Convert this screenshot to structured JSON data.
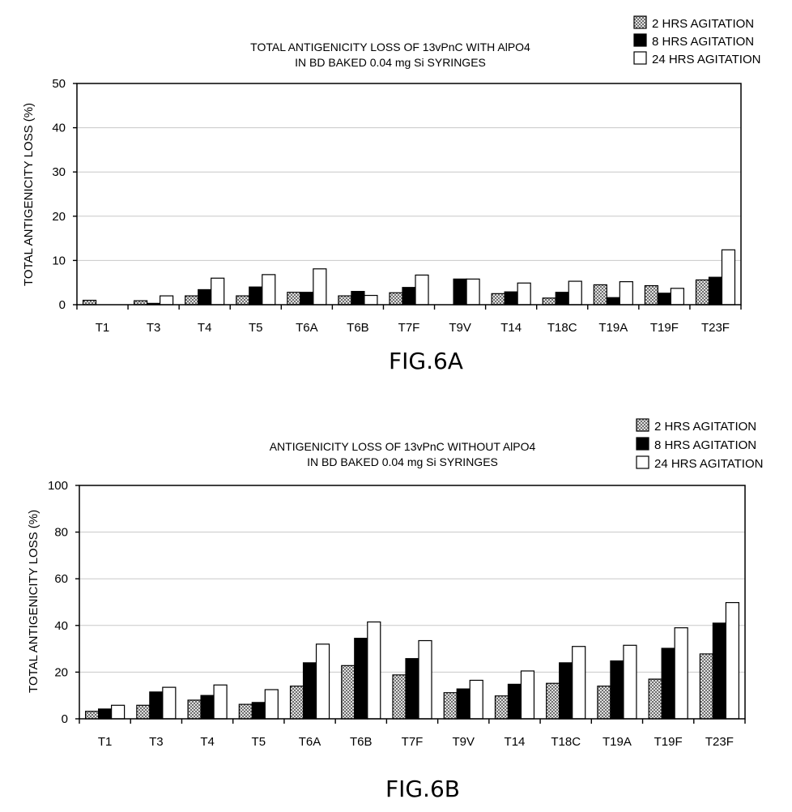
{
  "chart_data": [
    {
      "type": "bar",
      "title": "TOTAL ANTIGENICITY LOSS OF 13vPnC WITH AlPO4",
      "subtitle": "IN BD BAKED 0.04 mg Si SYRINGES",
      "ylabel": "TOTAL ANTIGENICITY LOSS (%)",
      "xlabel": "",
      "ylim": [
        0,
        50
      ],
      "yticks": [
        0,
        10,
        20,
        30,
        40,
        50
      ],
      "grid": true,
      "legend_position": "top-right",
      "figure_label": "FIG.6A",
      "categories": [
        "T1",
        "T3",
        "T4",
        "T5",
        "T6A",
        "T6B",
        "T7F",
        "T9V",
        "T14",
        "T18C",
        "T19A",
        "T19F",
        "T23F"
      ],
      "series": [
        {
          "name": "2 HRS AGITATION",
          "pattern": "crosshatch",
          "values": [
            1.0,
            0.9,
            2.0,
            2.0,
            2.8,
            2.0,
            2.7,
            0,
            2.5,
            1.5,
            4.5,
            4.3,
            5.6
          ]
        },
        {
          "name": "8 HRS AGITATION",
          "pattern": "solid-black",
          "values": [
            0,
            0.3,
            3.4,
            4.0,
            2.8,
            3.0,
            3.9,
            5.8,
            2.9,
            2.8,
            1.6,
            2.6,
            6.2
          ]
        },
        {
          "name": "24 HRS AGITATION",
          "pattern": "white",
          "values": [
            0,
            2.0,
            6.0,
            6.8,
            8.1,
            2.1,
            6.7,
            5.8,
            4.9,
            5.3,
            5.2,
            3.7,
            12.4
          ]
        }
      ]
    },
    {
      "type": "bar",
      "title": "ANTIGENICITY LOSS OF 13vPnC WITHOUT AlPO4",
      "subtitle": "IN BD BAKED 0.04 mg Si SYRINGES",
      "ylabel": "TOTAL ANTIGENICITY LOSS (%)",
      "xlabel": "",
      "ylim": [
        0,
        100
      ],
      "yticks": [
        0,
        20,
        40,
        60,
        80,
        100
      ],
      "grid": true,
      "legend_position": "top-right",
      "figure_label": "FIG.6B",
      "categories": [
        "T1",
        "T3",
        "T4",
        "T5",
        "T6A",
        "T6B",
        "T7F",
        "T9V",
        "T14",
        "T18C",
        "T19A",
        "T19F",
        "T23F"
      ],
      "series": [
        {
          "name": "2 HRS AGITATION",
          "pattern": "crosshatch",
          "values": [
            3.2,
            5.8,
            8.0,
            6.2,
            14.0,
            22.8,
            18.8,
            11.2,
            9.8,
            15.2,
            14.0,
            17.0,
            27.8
          ]
        },
        {
          "name": "8 HRS AGITATION",
          "pattern": "solid-black",
          "values": [
            4.2,
            11.5,
            10.0,
            7.0,
            24.0,
            34.5,
            25.8,
            12.8,
            14.8,
            24.0,
            24.8,
            30.2,
            41.0
          ]
        },
        {
          "name": "24 HRS AGITATION",
          "pattern": "white",
          "values": [
            5.8,
            13.5,
            14.5,
            12.5,
            32.0,
            41.5,
            33.5,
            16.5,
            20.5,
            31.0,
            31.5,
            39.0,
            49.8
          ]
        }
      ]
    }
  ]
}
